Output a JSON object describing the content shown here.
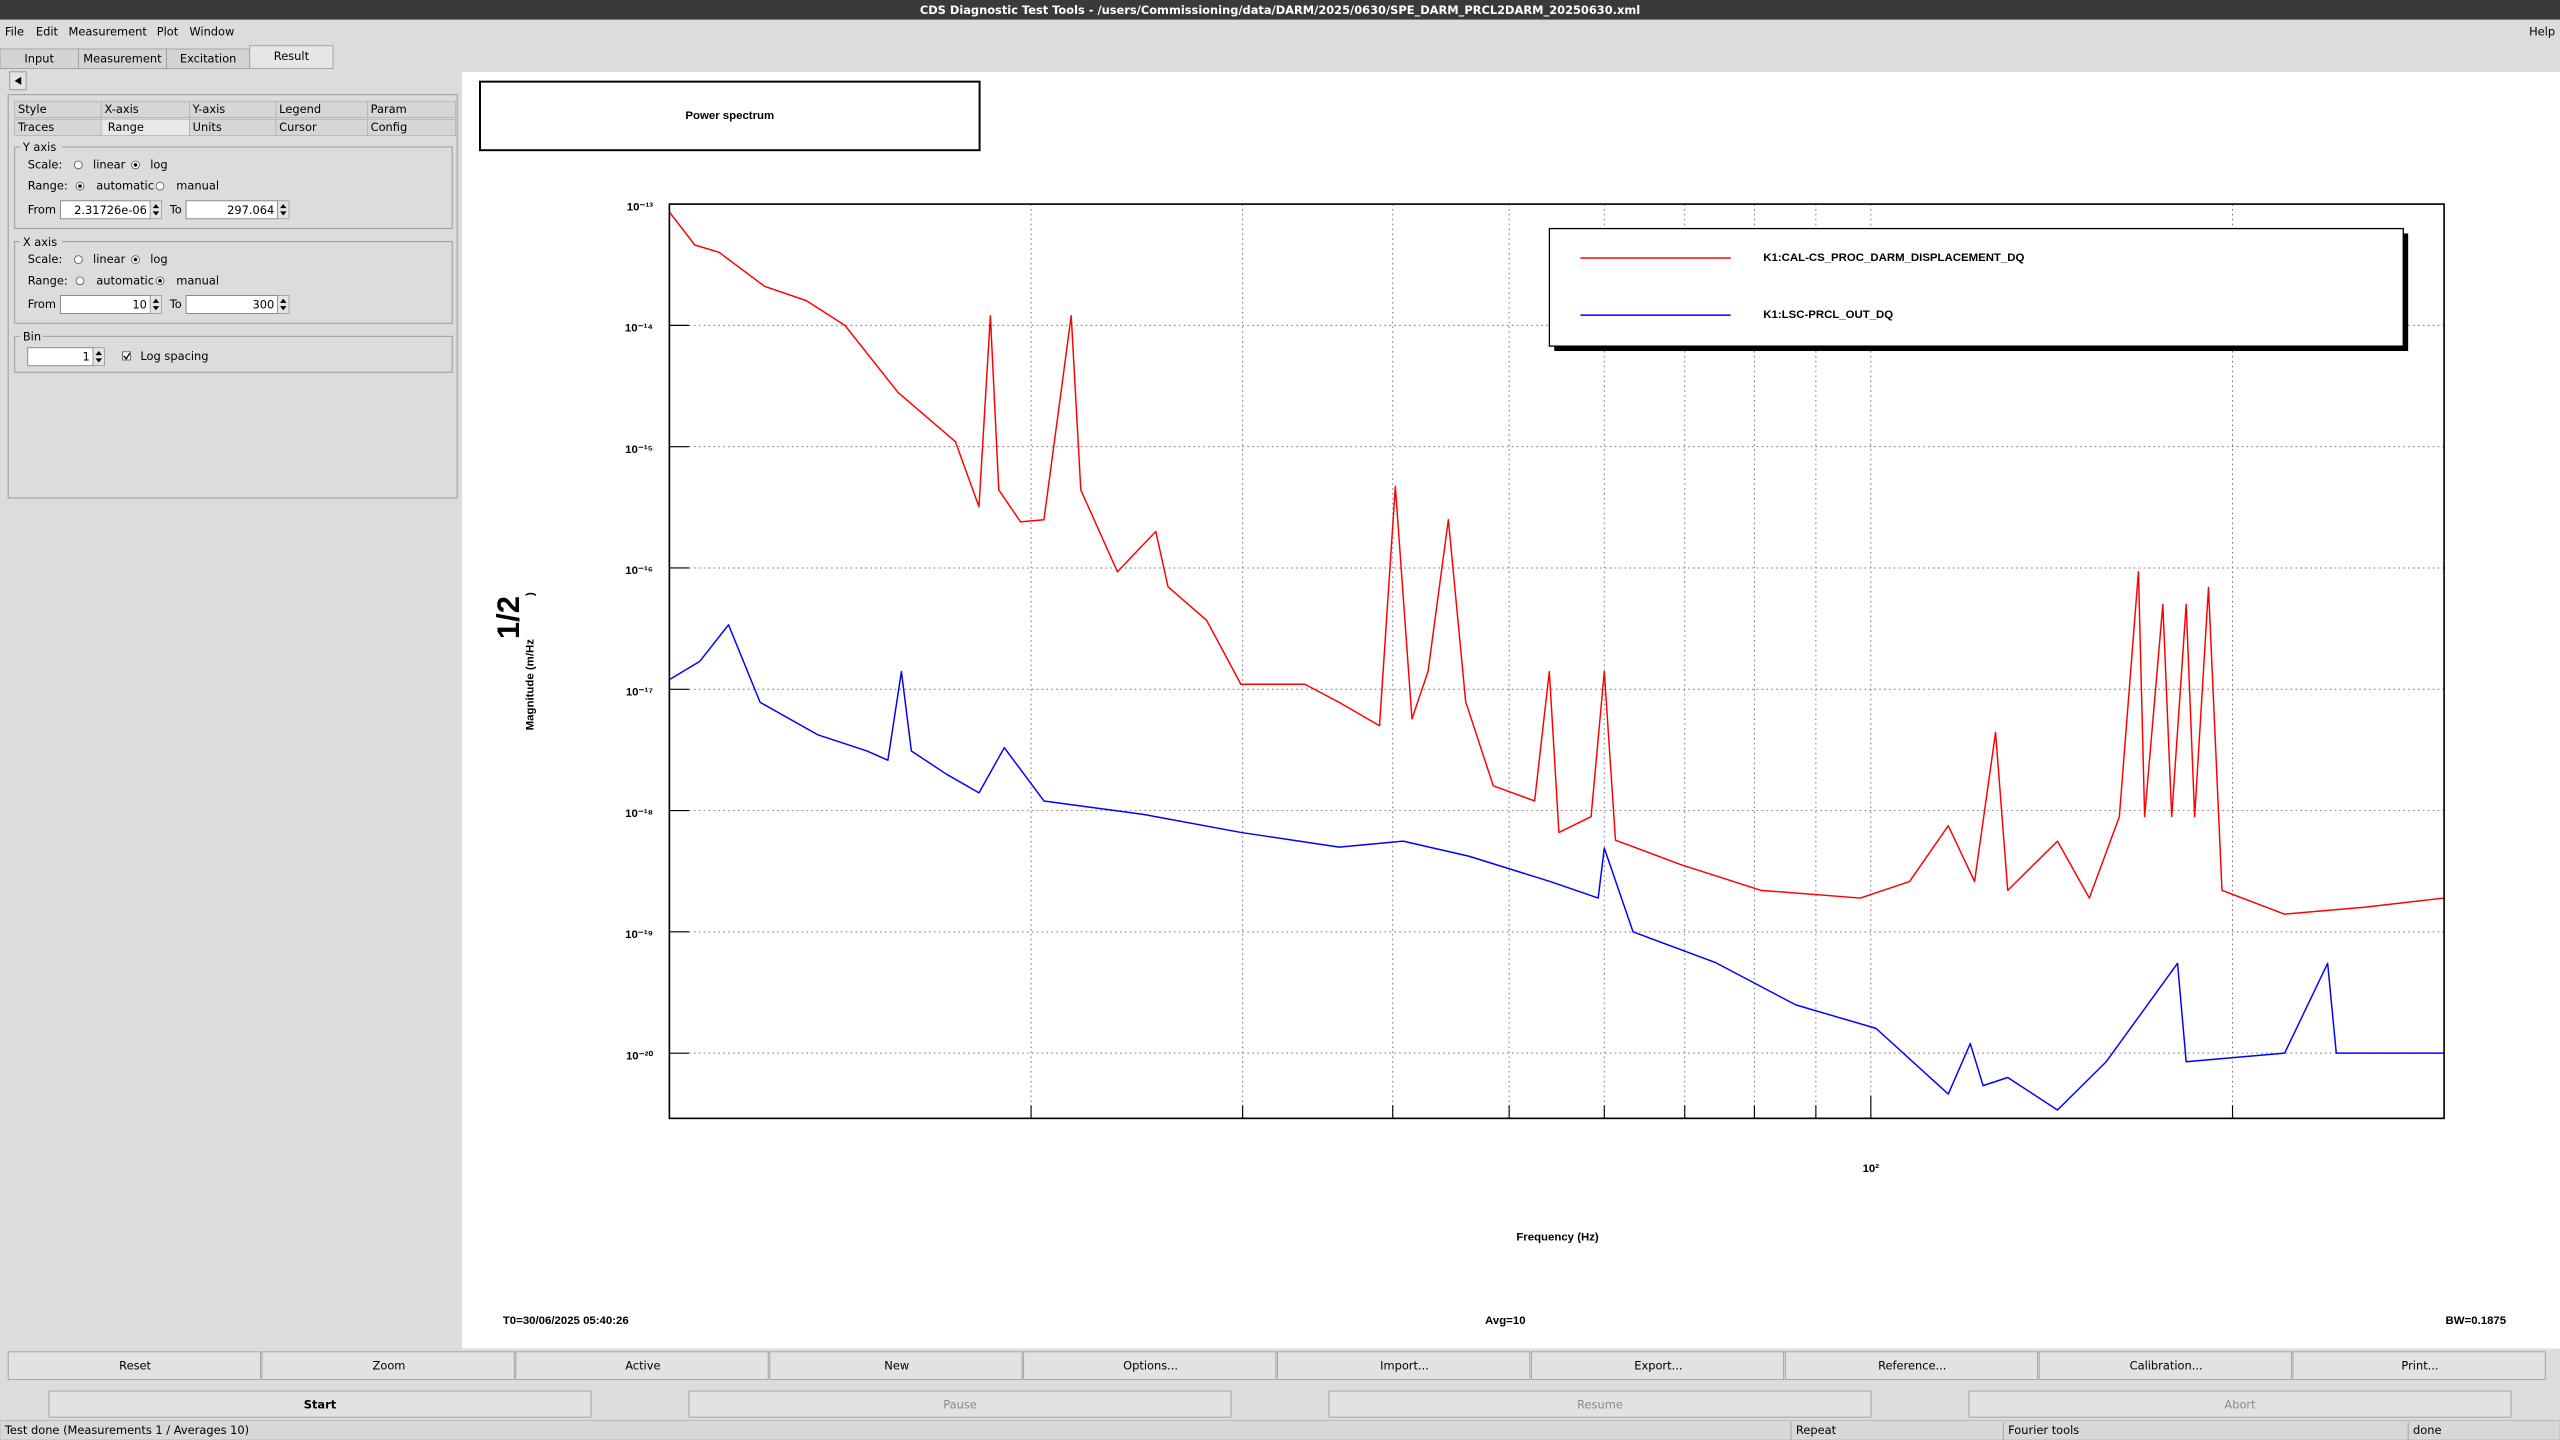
{
  "window_title": "CDS Diagnostic Test Tools - /users/Commissioning/data/DARM/2025/0630/SPE_DARM_PRCL2DARM_20250630.xml",
  "menu": [
    "File",
    "Edit",
    "Measurement",
    "Plot",
    "Window"
  ],
  "help": "Help",
  "tabs": [
    "Input",
    "Measurement",
    "Excitation",
    "Result"
  ],
  "active_tab": "Result",
  "options_tabs": [
    [
      "Style",
      "X-axis",
      "Y-axis",
      "Legend",
      "Param"
    ],
    [
      "Traces",
      "Range",
      "Units",
      "Cursor",
      "Config"
    ]
  ],
  "active_options_tab": "Range",
  "y_axis_group": {
    "title": "Y axis",
    "scale_label": "Scale:",
    "scale_options": [
      "linear",
      "log"
    ],
    "scale": "log",
    "range_label": "Range:",
    "range_options": [
      "automatic",
      "manual"
    ],
    "range": "automatic",
    "from_label": "From",
    "from": "2.31726e-06",
    "to_label": "To",
    "to": "297.064"
  },
  "x_axis_group": {
    "title": "X axis",
    "scale_label": "Scale:",
    "scale_options": [
      "linear",
      "log"
    ],
    "scale": "log",
    "range_label": "Range:",
    "range_options": [
      "automatic",
      "manual"
    ],
    "range": "manual",
    "from_label": "From",
    "from": "10",
    "to_label": "To",
    "to": "300"
  },
  "bin_group": {
    "title": "Bin",
    "value": "1",
    "log_spacing": "Log spacing",
    "log_spacing_checked": true
  },
  "chart_data": {
    "type": "line",
    "title": "Power spectrum",
    "xlabel": "Frequency (Hz)",
    "ylabel": {
      "text": "Magnitude (m/Hz",
      "sup": "1/2",
      "end": ")"
    },
    "xlog": true,
    "ylog": true,
    "grid": true,
    "legend": "upper right",
    "xlim": [
      10,
      300
    ],
    "ylim": [
      2.9e-21,
      1e-13
    ],
    "xticks": [
      {
        "value": 100,
        "label": "10²"
      }
    ],
    "xgrid_ticks": [
      20,
      30,
      40,
      50,
      60,
      70,
      80,
      90,
      200
    ],
    "yticks": [
      {
        "value": 1e-13,
        "label": "10⁻¹³"
      },
      {
        "value": 1e-14,
        "label": "10⁻¹⁴"
      },
      {
        "value": 1e-15,
        "label": "10⁻¹⁵"
      },
      {
        "value": 1e-16,
        "label": "10⁻¹⁶"
      },
      {
        "value": 1e-17,
        "label": "10⁻¹⁷"
      },
      {
        "value": 1e-18,
        "label": "10⁻¹⁸"
      },
      {
        "value": 1e-19,
        "label": "10⁻¹⁹"
      },
      {
        "value": 1e-20,
        "label": "10⁻²⁰"
      }
    ],
    "series": [
      {
        "name": "K1:CAL-CS_PROC_DARM_DISPLACEMENT_DQ",
        "color": "#ff0000",
        "x": [
          10,
          10.5,
          11,
          12,
          13,
          14,
          15.5,
          17.3,
          18.1,
          18.5,
          18.8,
          19.6,
          20.5,
          21.6,
          22,
          23.6,
          25.4,
          26,
          28,
          29.9,
          33.8,
          36.1,
          39,
          40.2,
          41.5,
          42.8,
          44.5,
          46,
          48.5,
          52.5,
          54,
          55,
          58.5,
          60,
          61.3,
          69.4,
          81,
          98,
          107.7,
          116,
          122,
          127,
          130,
          143,
          152,
          161,
          167,
          169,
          175,
          178,
          183,
          186,
          191,
          196,
          221,
          258,
          300
        ],
        "values": [
          8.6e-14,
          4.6e-14,
          4e-14,
          2.1e-14,
          1.6e-14,
          1e-14,
          2.8e-15,
          1.1e-15,
          3.2e-16,
          1.2e-14,
          4.4e-16,
          2.4e-16,
          2.5e-16,
          1.2e-14,
          4.4e-16,
          9.3e-17,
          2e-16,
          7e-17,
          3.7e-17,
          1.1e-17,
          1.1e-17,
          7.8e-18,
          5e-18,
          4.7e-16,
          5.7e-18,
          1.4e-17,
          2.5e-16,
          7.9e-18,
          1.6e-18,
          1.2e-18,
          1.4e-17,
          6.6e-19,
          8.9e-19,
          1.4e-17,
          5.7e-19,
          3.6e-19,
          2.2e-19,
          1.9e-19,
          2.6e-19,
          7.5e-19,
          2.6e-19,
          4.4e-18,
          2.2e-19,
          5.6e-19,
          1.9e-19,
          8.9e-19,
          9.3e-17,
          8.9e-19,
          5e-17,
          8.9e-19,
          5e-17,
          8.9e-19,
          6.9e-17,
          2.2e-19,
          1.4e-19,
          1.6e-19,
          1.9e-19
        ]
      },
      {
        "name": "K1:LSC-PRCL_OUT_DQ",
        "color": "#0000ff",
        "x": [
          10,
          10.6,
          11.2,
          11.9,
          13.3,
          14.6,
          15.2,
          15.6,
          15.9,
          17,
          18.1,
          19,
          20.5,
          24.8,
          29.9,
          36.1,
          40.8,
          46.3,
          54.1,
          59.3,
          60,
          63.4,
          74.2,
          86.6,
          101,
          116,
          121,
          124,
          130,
          143,
          157,
          180,
          183,
          221,
          240,
          244,
          300
        ],
        "values": [
          1.2e-17,
          1.7e-17,
          3.4e-17,
          7.8e-18,
          4.2e-18,
          3.1e-18,
          2.6e-18,
          1.4e-17,
          3.1e-18,
          2e-18,
          1.4e-18,
          3.3e-18,
          1.2e-18,
          9.3e-19,
          6.6e-19,
          5e-19,
          5.6e-19,
          4.2e-19,
          2.6e-19,
          1.9e-19,
          4.9e-19,
          1e-19,
          5.6e-20,
          2.5e-20,
          1.6e-20,
          4.6e-21,
          1.2e-20,
          5.4e-21,
          6.3e-21,
          3.4e-21,
          8.5e-21,
          5.5e-20,
          8.5e-21,
          1e-20,
          5.5e-20,
          1e-20,
          1e-20
        ]
      }
    ]
  },
  "info": {
    "t0": "T0=30/06/2025 05:40:26",
    "avg": "Avg=10",
    "bw": "BW=0.1875"
  },
  "buttons": [
    "Reset",
    "Zoom",
    "Active",
    "New",
    "Options...",
    "Import...",
    "Export...",
    "Reference...",
    "Calibration...",
    "Print..."
  ],
  "controls": [
    "Start",
    "Pause",
    "Resume",
    "Abort"
  ],
  "status": [
    "Test done (Measurements 1 / Averages 10)",
    "Repeat",
    "Fourier tools",
    "done"
  ]
}
